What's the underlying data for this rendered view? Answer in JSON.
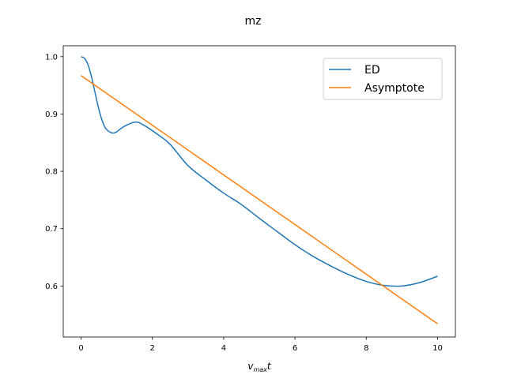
{
  "chart_data": {
    "type": "line",
    "title": "mz",
    "xlabel_main": "v",
    "xlabel_sub": "max",
    "xlabel_tail": "t",
    "ylabel": "",
    "xlim": [
      -0.5,
      10.5
    ],
    "ylim": [
      0.511,
      1.019
    ],
    "xticks": [
      0,
      2,
      4,
      6,
      8,
      10
    ],
    "yticks": [
      0.6,
      0.7,
      0.8,
      0.9,
      1.0
    ],
    "ytick_labels": [
      "0.6",
      "0.7",
      "0.8",
      "0.9",
      "1.0"
    ],
    "grid": false,
    "legend_placement": "top-right",
    "series": [
      {
        "name": "ED",
        "color": "#1f77b4",
        "x": [
          0,
          0.1,
          0.2,
          0.3,
          0.4,
          0.5,
          0.6,
          0.7,
          0.87,
          1.0,
          1.2,
          1.53,
          1.8,
          2.2,
          2.5,
          3.0,
          3.5,
          4.0,
          4.5,
          5.0,
          5.5,
          6.0,
          6.5,
          7.0,
          7.5,
          8.0,
          8.5,
          9.0,
          9.5,
          10.0
        ],
        "y": [
          1.0,
          0.997,
          0.985,
          0.963,
          0.935,
          0.908,
          0.887,
          0.874,
          0.867,
          0.869,
          0.878,
          0.886,
          0.879,
          0.862,
          0.847,
          0.81,
          0.785,
          0.762,
          0.742,
          0.718,
          0.695,
          0.672,
          0.652,
          0.635,
          0.62,
          0.608,
          0.601,
          0.6,
          0.606,
          0.617
        ]
      },
      {
        "name": "Asymptote",
        "color": "#ff7f0e",
        "x": [
          0,
          10
        ],
        "y": [
          0.967,
          0.534
        ]
      }
    ]
  }
}
